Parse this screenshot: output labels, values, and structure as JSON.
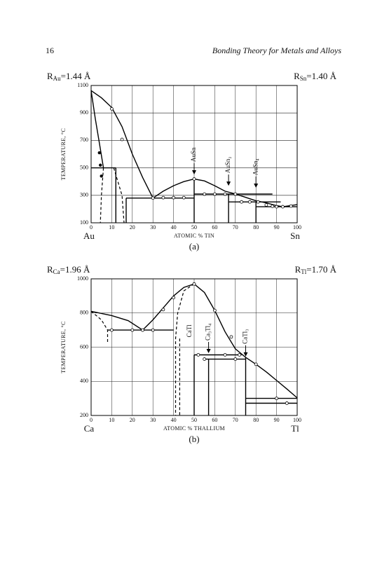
{
  "header": {
    "page_number": "16",
    "running_title": "Bonding Theory for Metals and Alloys"
  },
  "chart_data": [
    {
      "type": "line",
      "radius_left": {
        "symbol": "R",
        "sub": "Au",
        "text": "=1.44 Å"
      },
      "radius_right": {
        "symbol": "R",
        "sub": "Sn",
        "text": "=1.40 Å"
      },
      "ylabel": "TEMPERATURE, °C",
      "xlabel": "ATOMIC % TIN",
      "x_start_label": "Au",
      "x_end_label": "Sn",
      "caption": "(a)",
      "xlim": [
        0,
        100
      ],
      "ylim": [
        100,
        1100
      ],
      "xticks": [
        0,
        10,
        20,
        30,
        40,
        50,
        60,
        70,
        80,
        90,
        100
      ],
      "yticks": [
        100,
        300,
        500,
        700,
        900,
        1100
      ],
      "grid": true,
      "series": [
        {
          "style": "solid",
          "color": "#000000",
          "x": [
            0,
            5,
            10,
            15,
            20,
            25,
            30,
            35,
            40,
            45,
            50,
            55,
            60,
            65,
            70,
            75,
            80,
            85,
            90,
            93,
            100
          ],
          "values": [
            1063,
            1010,
            940,
            800,
            600,
            430,
            280,
            330,
            370,
            400,
            419,
            405,
            370,
            330,
            310,
            285,
            260,
            245,
            225,
            217,
            232
          ]
        },
        {
          "style": "solid",
          "color": "#000000",
          "x": [
            0,
            2,
            4,
            6
          ],
          "values": [
            1063,
            860,
            680,
            500
          ]
        },
        {
          "style": "dashed",
          "color": "#000000",
          "x": [
            6,
            5,
            4.5
          ],
          "values": [
            500,
            300,
            100
          ]
        },
        {
          "style": "dashed",
          "color": "#000000",
          "x": [
            11,
            13,
            15,
            16
          ],
          "values": [
            500,
            400,
            300,
            100
          ]
        },
        {
          "style": "solid",
          "color": "#000000",
          "x": [
            17,
            50,
            null,
            17,
            17,
            null,
            0,
            12,
            null,
            12,
            12,
            null,
            50,
            50,
            null,
            50,
            88,
            null,
            66.7,
            66.7,
            null,
            66.7,
            92,
            null,
            80,
            80,
            null,
            80,
            100
          ],
          "values": [
            280,
            280,
            null,
            280,
            100,
            null,
            500,
            500,
            null,
            500,
            100,
            null,
            419,
            100,
            null,
            309,
            309,
            null,
            309,
            100,
            null,
            252,
            252,
            null,
            252,
            100,
            null,
            217,
            217
          ]
        },
        {
          "style": "open-circle",
          "color": "#000000",
          "x": [
            10,
            15,
            30,
            35,
            40,
            45,
            50,
            55,
            60,
            65,
            70,
            73,
            77,
            81,
            85,
            88,
            90,
            93,
            97
          ],
          "values": [
            930,
            707,
            280,
            283,
            283,
            283,
            419,
            309,
            309,
            309,
            309,
            252,
            252,
            252,
            230,
            220,
            217,
            217,
            222
          ]
        },
        {
          "style": "dot",
          "color": "#000000",
          "x": [
            4,
            4.5,
            5
          ],
          "values": [
            610,
            520,
            440
          ]
        }
      ],
      "annotations": [
        {
          "text": "AuSn",
          "x": 50,
          "y": 452,
          "arrow": true
        },
        {
          "text": "AuSn₂",
          "x": 66.7,
          "y": 370,
          "arrow": true
        },
        {
          "text": "AuSn₄",
          "x": 80,
          "y": 355,
          "arrow": true
        }
      ]
    },
    {
      "type": "line",
      "radius_left": {
        "symbol": "R",
        "sub": "Ca",
        "text": "=1.96 Å"
      },
      "radius_right": {
        "symbol": "R",
        "sub": "Tl",
        "text": "=1.70 Å"
      },
      "ylabel": "TEMPERATURE, °C",
      "xlabel": "ATOMIC % THALLIUM",
      "x_start_label": "Ca",
      "x_end_label": "Tl",
      "caption": "(b)",
      "xlim": [
        0,
        100
      ],
      "ylim": [
        200,
        1000
      ],
      "xticks": [
        0,
        10,
        20,
        30,
        40,
        50,
        60,
        70,
        80,
        90,
        100
      ],
      "yticks": [
        200,
        400,
        600,
        800,
        1000
      ],
      "grid": true,
      "series": [
        {
          "style": "solid",
          "color": "#000000",
          "x": [
            0,
            10,
            18,
            25,
            30,
            35,
            40,
            45,
            50,
            55,
            60,
            65,
            70,
            75,
            80,
            85,
            90,
            95,
            100
          ],
          "values": [
            810,
            785,
            755,
            700,
            760,
            830,
            900,
            950,
            970,
            920,
            815,
            690,
            590,
            540,
            500,
            455,
            405,
            355,
            303
          ]
        },
        {
          "style": "dashed",
          "color": "#000000",
          "x": [
            0,
            5,
            8,
            8
          ],
          "values": [
            810,
            760,
            700,
            620
          ]
        },
        {
          "style": "dashed",
          "color": "#000000",
          "x": [
            50,
            45,
            42,
            41,
            41
          ],
          "values": [
            970,
            930,
            800,
            650,
            200
          ]
        },
        {
          "style": "dashed",
          "color": "#000000",
          "x": [
            43,
            43
          ],
          "values": [
            650,
            200
          ]
        },
        {
          "style": "solid",
          "color": "#000000",
          "x": [
            8,
            40,
            null,
            50,
            50,
            null,
            50,
            73,
            null,
            55,
            75,
            null,
            57,
            57,
            null,
            75,
            75,
            null,
            75,
            100,
            null,
            75,
            100
          ],
          "values": [
            700,
            700,
            null,
            555,
            200,
            null,
            555,
            555,
            null,
            530,
            530,
            null,
            530,
            200,
            null,
            540,
            200,
            null,
            300,
            300,
            null,
            272,
            272
          ]
        },
        {
          "style": "open-circle",
          "color": "#000000",
          "x": [
            10,
            20,
            25,
            30,
            35,
            40,
            50,
            52,
            55,
            60,
            65,
            68,
            70,
            72,
            80,
            90,
            95
          ],
          "values": [
            700,
            700,
            700,
            700,
            820,
            890,
            970,
            555,
            530,
            815,
            555,
            660,
            530,
            555,
            500,
            300,
            272
          ]
        }
      ],
      "annotations": [
        {
          "text": "CaTl",
          "x": 48,
          "y": 650,
          "arrow": false
        },
        {
          "text": "Ca₃Tl₄",
          "x": 57,
          "y": 565,
          "arrow": true
        },
        {
          "text": "CaTl₃",
          "x": 75,
          "y": 545,
          "arrow": true
        }
      ]
    }
  ]
}
